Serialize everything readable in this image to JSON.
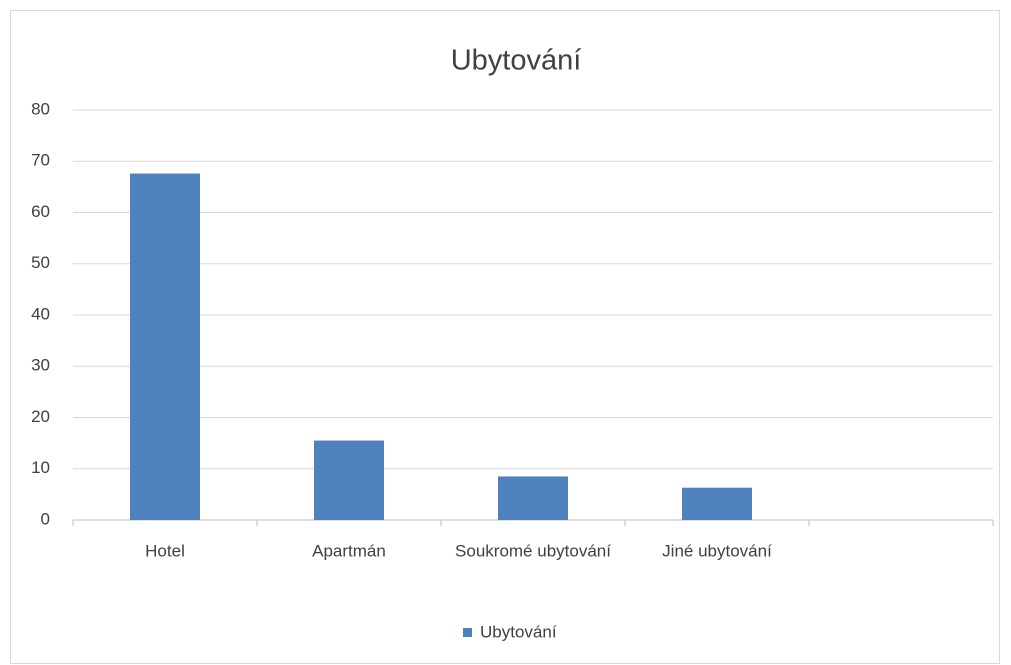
{
  "chart_data": {
    "type": "bar",
    "title": "Ubytování",
    "categories": [
      "Hotel",
      "Apartmán",
      "Soukromé ubytování",
      "Jiné ubytování",
      null
    ],
    "series": [
      {
        "name": "Ubytování",
        "color": "#4f81bd",
        "values": [
          67.6,
          15.5,
          8.5,
          6.3,
          null
        ]
      }
    ],
    "ylim": [
      0,
      80
    ],
    "yticks": [
      0,
      10,
      20,
      30,
      40,
      50,
      60,
      70,
      80
    ],
    "grid": true,
    "legend": "bottom"
  }
}
